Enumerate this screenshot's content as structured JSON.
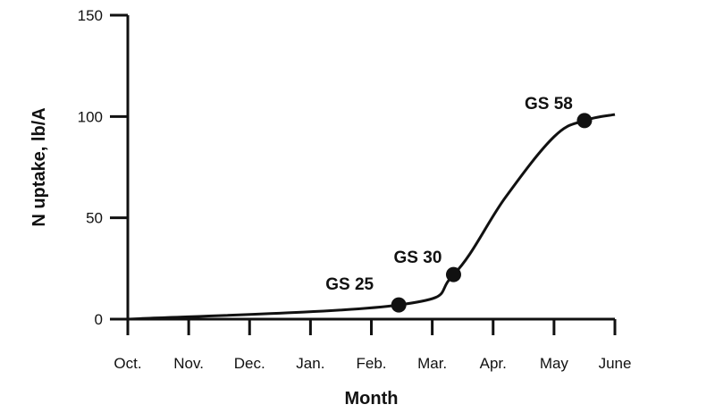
{
  "chart_data": {
    "type": "line",
    "title": "",
    "xlabel": "Month",
    "ylabel": "N uptake, lb/A",
    "categories": [
      "Oct.",
      "Nov.",
      "Dec.",
      "Jan.",
      "Feb.",
      "Mar.",
      "Apr.",
      "May",
      "June"
    ],
    "y_ticks": [
      "0",
      "50",
      "100",
      "150"
    ],
    "ylim": [
      0,
      150
    ],
    "grid": false,
    "legend": "none",
    "series": [
      {
        "x": [
          "Oct.",
          "Feb. (late)",
          "Mar. (mid)",
          "Apr. (mid)",
          "May (mid)",
          "May (late)",
          "June"
        ],
        "x_month_index": [
          0,
          4.45,
          5.35,
          6.2,
          7.0,
          7.5,
          8.0
        ],
        "values": [
          0,
          7,
          22,
          60,
          90,
          98,
          101
        ]
      }
    ],
    "annotations": [
      {
        "label": "GS 25",
        "x_month_index": 4.45,
        "y": 7
      },
      {
        "label": "GS 30",
        "x_month_index": 5.35,
        "y": 22
      },
      {
        "label": "GS 58",
        "x_month_index": 7.5,
        "y": 98
      }
    ]
  }
}
